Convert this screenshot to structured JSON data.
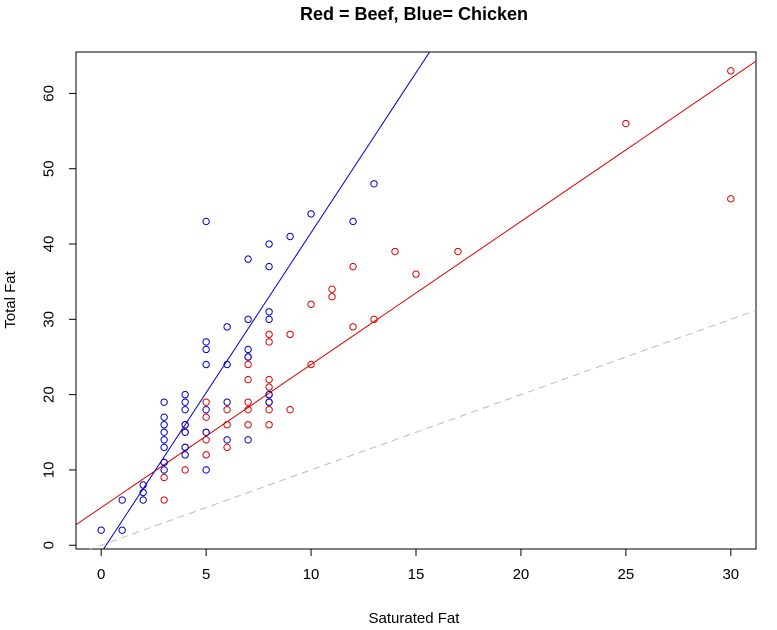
{
  "chart_data": {
    "type": "scatter",
    "title": "Red = Beef, Blue= Chicken",
    "xlabel": "Saturated Fat",
    "ylabel": "Total Fat",
    "xlim": [
      -1.2,
      31.2
    ],
    "ylim": [
      -0.5,
      65.5
    ],
    "x_ticks": [
      0,
      5,
      10,
      15,
      20,
      25,
      30
    ],
    "y_ticks": [
      0,
      10,
      20,
      30,
      40,
      50,
      60
    ],
    "grid": false,
    "legend": "none",
    "series": [
      {
        "color": "#dd0000",
        "points": [
          [
            3,
            6
          ],
          [
            3,
            9
          ],
          [
            3,
            11
          ],
          [
            4,
            10
          ],
          [
            4,
            13
          ],
          [
            4,
            15
          ],
          [
            4,
            16
          ],
          [
            5,
            12
          ],
          [
            5,
            14
          ],
          [
            5,
            15
          ],
          [
            5,
            17
          ],
          [
            5,
            19
          ],
          [
            6,
            13
          ],
          [
            6,
            16
          ],
          [
            6,
            18
          ],
          [
            7,
            16
          ],
          [
            7,
            18
          ],
          [
            7,
            19
          ],
          [
            7,
            22
          ],
          [
            7,
            24
          ],
          [
            7,
            25
          ],
          [
            8,
            16
          ],
          [
            8,
            18
          ],
          [
            8,
            19
          ],
          [
            8,
            20
          ],
          [
            8,
            21
          ],
          [
            8,
            22
          ],
          [
            8,
            27
          ],
          [
            8,
            28
          ],
          [
            9,
            18
          ],
          [
            9,
            28
          ],
          [
            10,
            24
          ],
          [
            10,
            32
          ],
          [
            11,
            33
          ],
          [
            11,
            34
          ],
          [
            12,
            29
          ],
          [
            12,
            37
          ],
          [
            13,
            30
          ],
          [
            14,
            39
          ],
          [
            15,
            36
          ],
          [
            17,
            39
          ],
          [
            25,
            56
          ],
          [
            30,
            46
          ],
          [
            30,
            63
          ]
        ]
      },
      {
        "color": "#0000cc",
        "points": [
          [
            0,
            2
          ],
          [
            1,
            2
          ],
          [
            1,
            6
          ],
          [
            2,
            6
          ],
          [
            2,
            7
          ],
          [
            2,
            8
          ],
          [
            3,
            10
          ],
          [
            3,
            11
          ],
          [
            3,
            13
          ],
          [
            3,
            14
          ],
          [
            3,
            15
          ],
          [
            3,
            16
          ],
          [
            3,
            17
          ],
          [
            3,
            19
          ],
          [
            4,
            12
          ],
          [
            4,
            13
          ],
          [
            4,
            15
          ],
          [
            4,
            16
          ],
          [
            4,
            18
          ],
          [
            4,
            19
          ],
          [
            4,
            20
          ],
          [
            5,
            10
          ],
          [
            5,
            15
          ],
          [
            5,
            18
          ],
          [
            5,
            24
          ],
          [
            5,
            26
          ],
          [
            5,
            27
          ],
          [
            5,
            43
          ],
          [
            6,
            14
          ],
          [
            6,
            19
          ],
          [
            6,
            24
          ],
          [
            6,
            29
          ],
          [
            7,
            14
          ],
          [
            7,
            25
          ],
          [
            7,
            26
          ],
          [
            7,
            30
          ],
          [
            7,
            38
          ],
          [
            8,
            19
          ],
          [
            8,
            20
          ],
          [
            8,
            30
          ],
          [
            8,
            31
          ],
          [
            8,
            37
          ],
          [
            8,
            40
          ],
          [
            9,
            41
          ],
          [
            10,
            44
          ],
          [
            12,
            43
          ],
          [
            13,
            48
          ]
        ]
      }
    ],
    "fit_lines": [
      {
        "color": "#dd0000",
        "style": "solid",
        "intercept": 5.0,
        "slope": 1.9
      },
      {
        "color": "#0000cc",
        "style": "solid",
        "intercept": -1.0,
        "slope": 4.25
      },
      {
        "color": "#bbbbbb",
        "style": "dashed",
        "intercept": 0.0,
        "slope": 1.0
      }
    ]
  }
}
